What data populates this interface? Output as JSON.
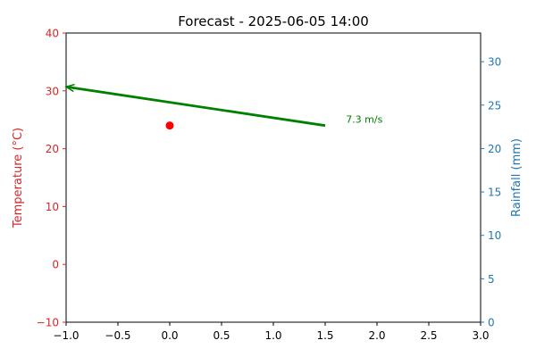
{
  "chart_data": {
    "type": "scatter",
    "title": "Forecast - 2025-06-05 14:00",
    "xlim": [
      -1.0,
      3.0
    ],
    "x_ticks": [
      "−1.0",
      "−0.5",
      "0.0",
      "0.5",
      "1.0",
      "1.5",
      "2.0",
      "2.5",
      "3.0"
    ],
    "left_axis": {
      "label": "Temperature (°C)",
      "color": "#d62728",
      "ylim": [
        -10,
        40
      ],
      "ticks": [
        -10,
        0,
        10,
        20,
        30,
        40
      ],
      "tick_labels": [
        "−10",
        "0",
        "10",
        "20",
        "30",
        "40"
      ]
    },
    "right_axis": {
      "label": "Rainfall (mm)",
      "color": "#1f77b4",
      "ylim": [
        0,
        33.3
      ],
      "ticks": [
        0,
        5,
        10,
        15,
        20,
        25,
        30
      ],
      "tick_labels": [
        "0",
        "5",
        "10",
        "15",
        "20",
        "25",
        "30"
      ]
    },
    "temperature_point": {
      "x": 0.0,
      "y": 24,
      "color": "#ff0000"
    },
    "wind_arrow": {
      "color": "#008000",
      "start": {
        "x": 1.5,
        "y": 24
      },
      "end": {
        "x": -1.0,
        "y": 30.7
      },
      "label": "7.3 m/s",
      "label_x": 1.7
    },
    "grid": false,
    "legend": "none"
  }
}
